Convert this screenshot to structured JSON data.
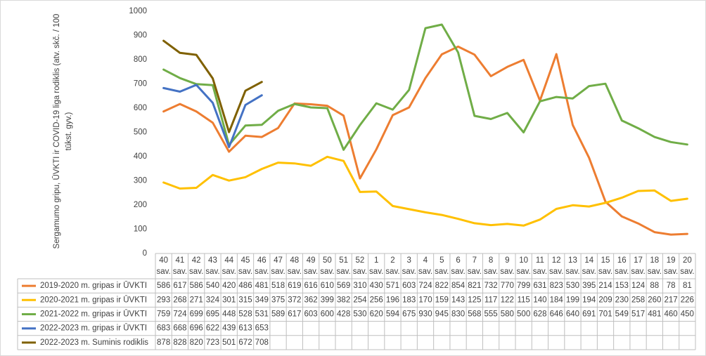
{
  "chart_data": {
    "type": "line",
    "y_axis_label": "Sergamumo gripu, ŪVKTI ir COVID-19 liga rodiklis (atv. skč. / 100 tūkst. gyv.)",
    "categories": [
      "40",
      "41",
      "42",
      "43",
      "44",
      "45",
      "46",
      "47",
      "48",
      "49",
      "50",
      "51",
      "52",
      "1",
      "2",
      "3",
      "4",
      "5",
      "6",
      "7",
      "8",
      "9",
      "10",
      "11",
      "12",
      "13",
      "14",
      "15",
      "16",
      "17",
      "18",
      "19",
      "20"
    ],
    "category_suffix": "sav.",
    "series": [
      {
        "name": "2019-2020 m. gripas ir ŪVKTI",
        "color": "#ed7d31",
        "values": [
          586,
          617,
          586,
          540,
          420,
          486,
          481,
          518,
          619,
          616,
          610,
          569,
          310,
          430,
          571,
          603,
          724,
          822,
          854,
          821,
          732,
          770,
          799,
          631,
          823,
          530,
          395,
          214,
          153,
          124,
          88,
          78,
          81
        ]
      },
      {
        "name": "2020-2021 m. gripas ir ŪVKTI",
        "color": "#ffc000",
        "values": [
          293,
          268,
          271,
          324,
          301,
          315,
          349,
          375,
          372,
          362,
          399,
          382,
          254,
          256,
          196,
          183,
          170,
          159,
          143,
          125,
          117,
          122,
          115,
          140,
          184,
          199,
          194,
          209,
          230,
          258,
          260,
          217,
          226
        ]
      },
      {
        "name": "2021-2022 m. gripas ir ŪVKTI",
        "color": "#70ad47",
        "values": [
          759,
          724,
          699,
          695,
          448,
          528,
          531,
          589,
          617,
          603,
          600,
          428,
          530,
          620,
          594,
          675,
          930,
          945,
          830,
          568,
          555,
          580,
          500,
          628,
          646,
          640,
          691,
          701,
          549,
          517,
          481,
          460,
          450
        ]
      },
      {
        "name": "2022-2023 m. gripas ir ŪVKTI",
        "color": "#4472c4",
        "values": [
          683,
          668,
          696,
          622,
          439,
          613,
          653,
          null,
          null,
          null,
          null,
          null,
          null,
          null,
          null,
          null,
          null,
          null,
          null,
          null,
          null,
          null,
          null,
          null,
          null,
          null,
          null,
          null,
          null,
          null,
          null,
          null,
          null
        ]
      },
      {
        "name": "2022-2023 m. Suminis rodiklis",
        "color": "#7f6000",
        "values": [
          878,
          828,
          820,
          723,
          501,
          672,
          708,
          null,
          null,
          null,
          null,
          null,
          null,
          null,
          null,
          null,
          null,
          null,
          null,
          null,
          null,
          null,
          null,
          null,
          null,
          null,
          null,
          null,
          null,
          null,
          null,
          null,
          null
        ]
      }
    ],
    "ylim": [
      0,
      1000
    ],
    "yticks": [
      0,
      100,
      200,
      300,
      400,
      500,
      600,
      700,
      800,
      900,
      1000
    ],
    "grid": false,
    "legend": "table"
  }
}
